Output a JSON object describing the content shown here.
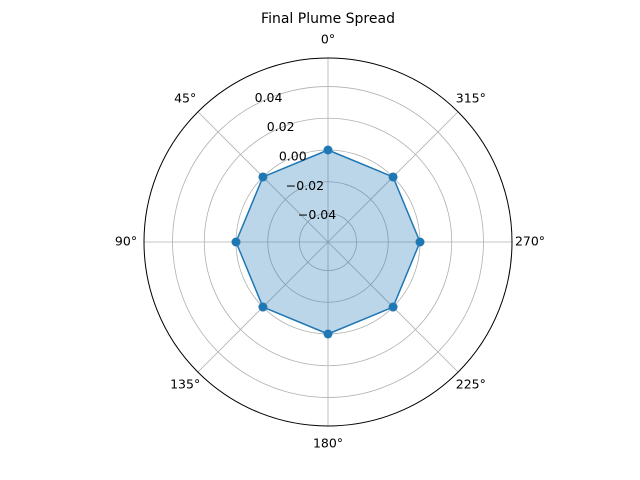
{
  "chart_data": {
    "type": "polar-line",
    "title": "Final Plume Spread",
    "theta_direction": "clockwise",
    "theta_zero": "top",
    "angle_tick_labels": [
      "0°",
      "45°",
      "90°",
      "135°",
      "180°",
      "225°",
      "270°",
      "315°"
    ],
    "angle_tick_values": [
      0,
      45,
      90,
      135,
      180,
      225,
      270,
      315
    ],
    "radial_tick_values": [
      -0.04,
      -0.02,
      0.0,
      0.02,
      0.04
    ],
    "radial_tick_labels": [
      "−0.04",
      "−0.02",
      "0.00",
      "0.02",
      "0.04"
    ],
    "rlim": [
      -0.058,
      0.058
    ],
    "grid": true,
    "series": [
      {
        "theta_deg": [
          0,
          45,
          90,
          135,
          180,
          225,
          270,
          315
        ],
        "r": [
          0,
          0,
          0,
          0,
          0,
          0,
          0,
          0
        ],
        "color": "#1f77b4",
        "fill": true,
        "fill_alpha": 0.3,
        "marker": "circle"
      }
    ]
  },
  "colors": {
    "series": "#1f77b4",
    "grid": "#b0b0b0",
    "spine": "#000000"
  }
}
